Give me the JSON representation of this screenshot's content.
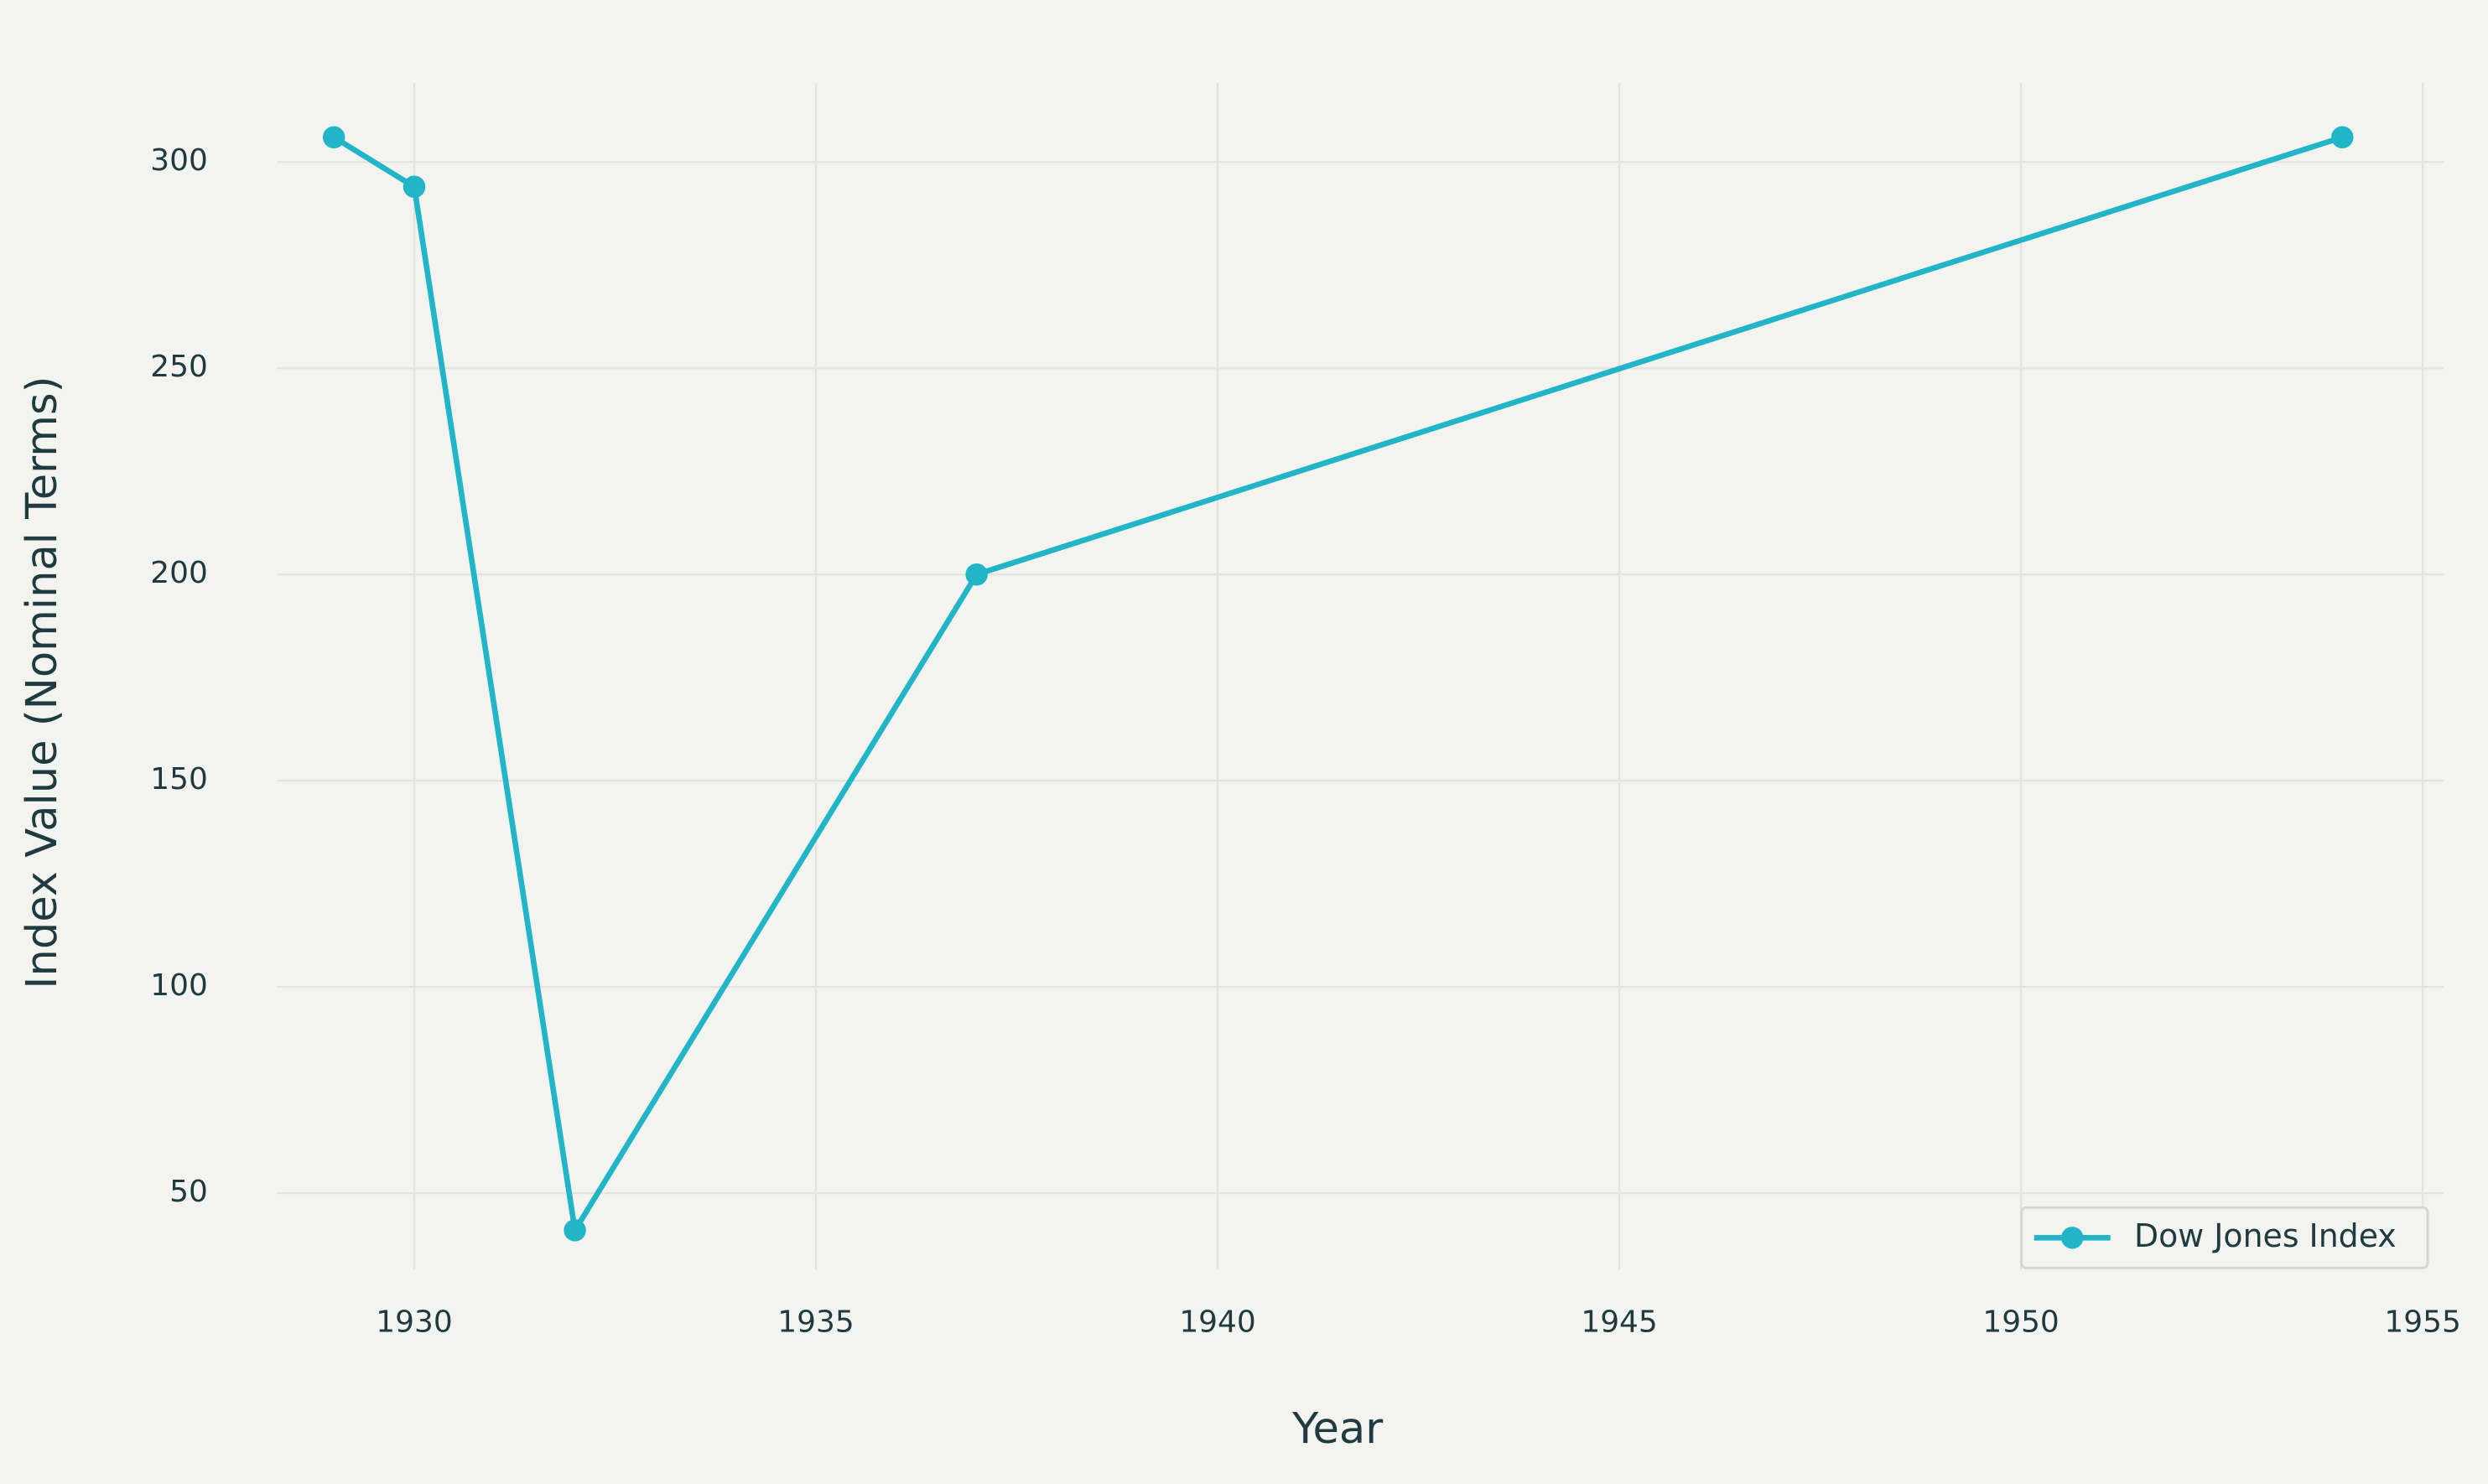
{
  "chart_data": {
    "type": "line",
    "x_label": "Year",
    "y_label": "Index Value (Nominal Terms)",
    "x": [
      1929,
      1930,
      1932,
      1937,
      1954
    ],
    "series": [
      {
        "name": "Dow Jones Index",
        "color": "#22b5c8",
        "values": [
          306,
          294,
          41,
          200,
          306
        ]
      }
    ],
    "xlim": [
      1928.3,
      1955.26
    ],
    "ylim": [
      31.5,
      319.2
    ],
    "xticks": [
      1930,
      1935,
      1940,
      1945,
      1950,
      1955
    ],
    "yticks": [
      50,
      100,
      150,
      200,
      250,
      300
    ],
    "grid": true,
    "legend": "lower right",
    "markers": true
  }
}
